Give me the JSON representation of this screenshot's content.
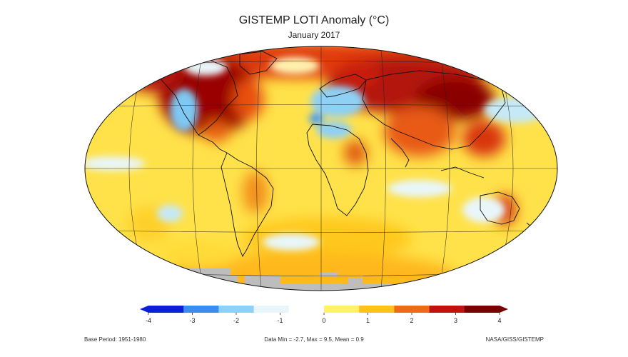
{
  "title": "GISTEMP LOTI Anomaly (°C)",
  "subtitle": "January 2017",
  "colorbar": {
    "ticks": [
      "-4",
      "-3",
      "-2",
      "-1",
      "0",
      "1",
      "2",
      "3",
      "4"
    ],
    "range": [
      -4,
      4
    ],
    "colors": [
      "#0a1fd6",
      "#3a8df0",
      "#8fd0f5",
      "#e8f6fb",
      "#ffffff",
      "#fff266",
      "#ffc21a",
      "#f06a14",
      "#c01010",
      "#7a0000"
    ]
  },
  "footer": {
    "left": "Base Period: 1951-1980",
    "center": "Data Min = -2.7, Max = 9.5, Mean = 0.9",
    "right": "NASA/GISS/GISTEMP"
  },
  "map": {
    "ocean_color": "#ffe24a",
    "missing_color": "#bdbdbd"
  }
}
